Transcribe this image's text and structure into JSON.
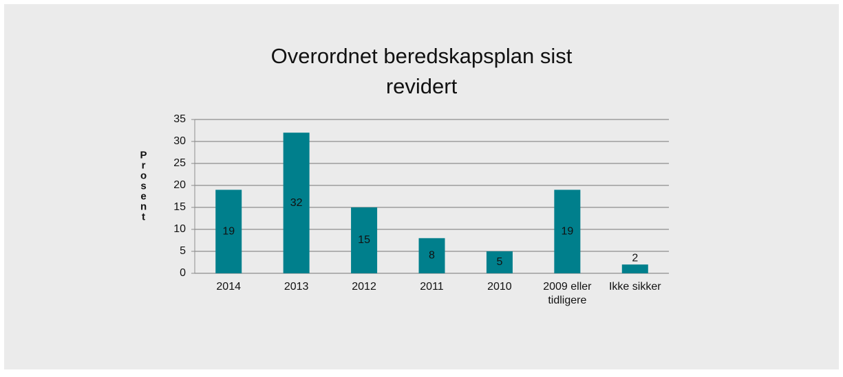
{
  "chart_data": {
    "type": "bar",
    "title": "Overordnet beredskapsplan sist revidert",
    "y_label": "Prosent",
    "categories": [
      "2014",
      "2013",
      "2012",
      "2011",
      "2010",
      "2009 eller tidligere",
      "Ikke sikker"
    ],
    "values": [
      19,
      32,
      15,
      8,
      5,
      19,
      2
    ],
    "color": "#007f8c",
    "ylim": [
      0,
      35
    ],
    "yticks": [
      0,
      5,
      10,
      15,
      20,
      25,
      30,
      35
    ],
    "grid": true
  }
}
